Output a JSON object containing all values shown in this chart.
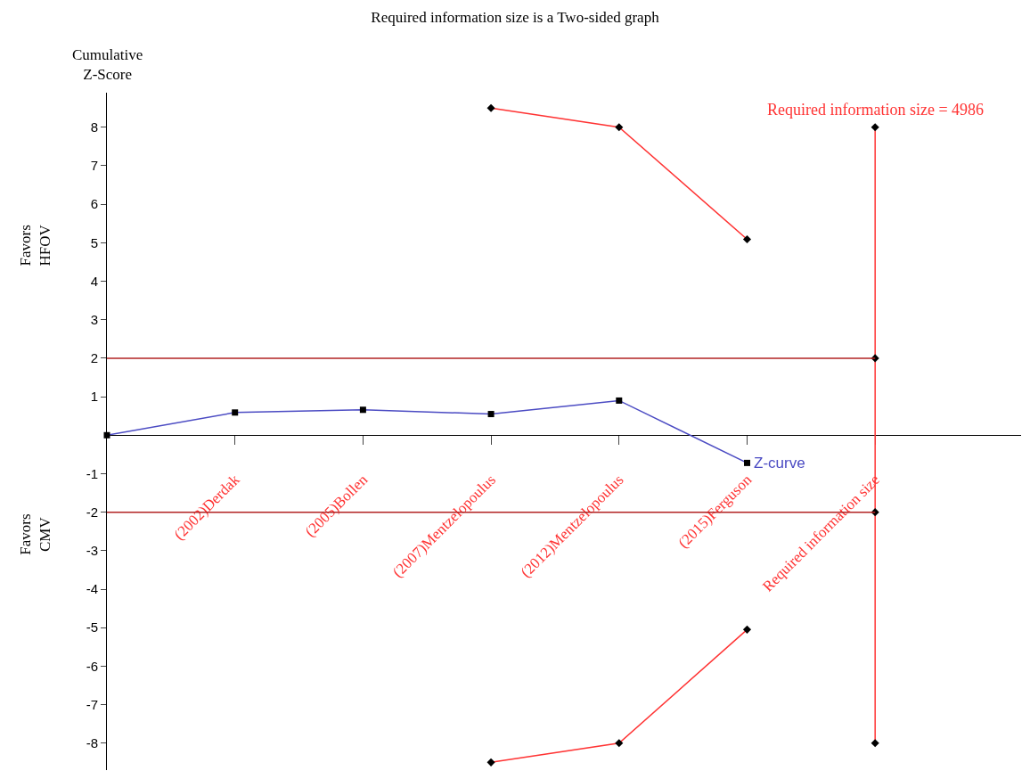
{
  "chart_data": {
    "type": "line",
    "title": "Required information size is a Two-sided graph",
    "ylabel": "Cumulative Z-Score",
    "categories": [
      null,
      "(2002)Derdak",
      "(2005)Bollen",
      "(2007)Mentzelopoulus",
      "(2012)Mentzelopoulus",
      "(2015)Ferguson",
      "Required information size"
    ],
    "series": [
      {
        "name": "Z-curve",
        "color": "#4b4bc3",
        "marker": "square",
        "values": [
          0,
          0.59,
          0.66,
          0.55,
          0.9,
          -0.72,
          null
        ]
      },
      {
        "color": "#ff3333",
        "marker": "diamond",
        "values": [
          null,
          null,
          null,
          8.5,
          8.0,
          5.09,
          null
        ]
      },
      {
        "color": "#ff3333",
        "marker": "diamond",
        "values": [
          null,
          null,
          null,
          -8.5,
          -8.0,
          -5.05,
          null
        ]
      },
      {
        "color": "#ff3333",
        "marker": "diamond",
        "x": [
          "Required information size",
          "Required information size",
          "Required information size",
          "Required information size"
        ],
        "values": [
          8,
          2,
          -2,
          -8
        ]
      }
    ],
    "ref_lines": [
      {
        "axis": "y",
        "value": 2,
        "color": "#b22222"
      },
      {
        "axis": "y",
        "value": -2,
        "color": "#b22222"
      }
    ],
    "ylim": [
      -8.7,
      8.9
    ],
    "yticks": [
      -8,
      -7,
      -6,
      -5,
      -4,
      -3,
      -2,
      -1,
      1,
      2,
      3,
      4,
      5,
      6,
      7,
      8
    ],
    "legend": false,
    "line_style": "solid",
    "annotations": [
      "Favors HFOV",
      "Favors CMV",
      {
        "text": "Required information size = 4986",
        "x": "Required information size",
        "y": 8
      }
    ]
  }
}
